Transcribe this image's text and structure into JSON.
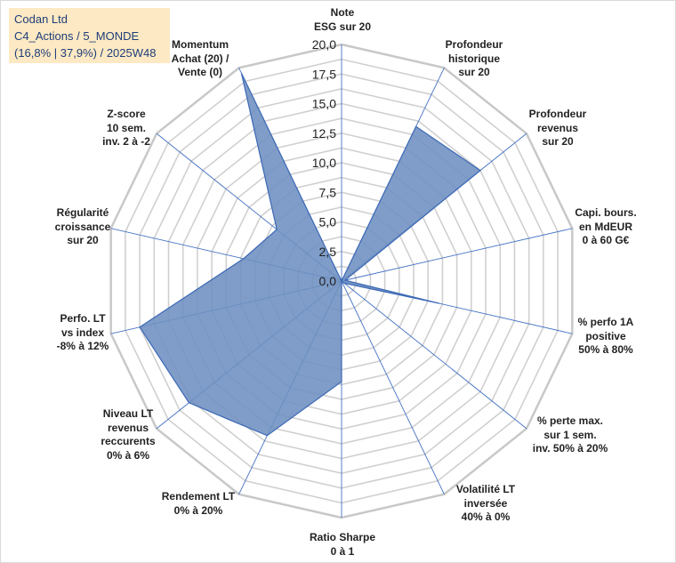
{
  "info": {
    "company": "Codan Ltd",
    "category": "C4_Actions / 5_MONDE",
    "stats": "(16,8% | 37,9%) / 2025W48"
  },
  "chart_data": {
    "type": "radar",
    "title": "",
    "rlim": [
      0,
      20
    ],
    "ticks": [
      0,
      2.5,
      5,
      7.5,
      10,
      12.5,
      15,
      17.5,
      20
    ],
    "tick_labels": [
      "0,0",
      "2,5",
      "5,0",
      "7,5",
      "10,0",
      "12,5",
      "15,0",
      "17,5",
      "20,0"
    ],
    "axes": [
      "Note\nESG sur 20",
      "Profondeur\nhistorique\nsur 20",
      "Profondeur\nrevenus\nsur 20",
      "Capi. bours.\nen MdEUR\n0 à 60 G€",
      "% perfo 1A\npositive\n50% à 80%",
      "% perte max.\nsur 1 sem.\ninv. 50% à 20%",
      "Volatilité LT\ninversée\n40% à 0%",
      "Ratio Sharpe\n0 à 1",
      "Rendement LT\n0% à 20%",
      "Niveau LT\nrevenus\nreccurents\n0% à 6%",
      "Perfo. LT\nvs index\n-8% à 12%",
      "Régularité\ncroissance\nsur 20",
      "Z-score\n10 sem.\ninv. 2 à -2",
      "Momentum\nAchat (20) /\nVente (0)"
    ],
    "series": [
      {
        "name": "Codan Ltd",
        "values": [
          0,
          14.5,
          15.0,
          0.3,
          8.5,
          0.3,
          0,
          8.5,
          14.5,
          16.5,
          17.5,
          8.5,
          7.0,
          19.5
        ]
      }
    ],
    "colors": {
      "fill": "#6d8fc0",
      "stroke": "#3b68b5",
      "grid": "#d0d0d0",
      "spoke": "#4472c4"
    }
  }
}
